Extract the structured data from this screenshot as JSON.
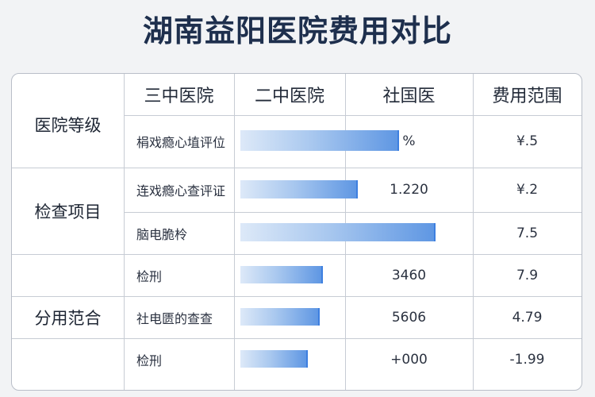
{
  "title": "湖南益阳医院费用对比",
  "header": {
    "col1": "三中医院",
    "col2": "二中医院",
    "col3": "社国医",
    "col4": "费用范围"
  },
  "groups": [
    {
      "label": "医院等级",
      "rows": [
        0
      ]
    },
    {
      "label": "检查项目",
      "rows": [
        1,
        2
      ]
    },
    {
      "label": "",
      "rows": [
        3
      ]
    },
    {
      "label": "分用范合",
      "rows": [
        4
      ]
    },
    {
      "label": "",
      "rows": [
        5
      ]
    }
  ],
  "rows": [
    {
      "item": "梋戏瘾心埴评位",
      "col3": "%",
      "range": "¥.5"
    },
    {
      "item": "连戏瘾心查评证",
      "col3": "1.220",
      "range": "¥.2"
    },
    {
      "item": "脑电脆柃",
      "col3": "",
      "range": "7.5"
    },
    {
      "item": "检刑",
      "col3": "3460",
      "range": "7.9"
    },
    {
      "item": "社电匮的查查",
      "col3": "5606",
      "range": "4.79"
    },
    {
      "item": "检刑",
      "col3": "+000",
      "range": "-1.99"
    }
  ],
  "chart_data": {
    "type": "bar",
    "orientation": "horizontal",
    "title": "湖南益阳医院费用对比",
    "categories": [
      "梋戏瘾心埴评位",
      "连戏瘾心查评证",
      "脑电脆柃",
      "检刑",
      "社电匮的查查",
      "检刑"
    ],
    "values": [
      0.81,
      0.6,
      1.0,
      0.42,
      0.4,
      0.34
    ],
    "value_unit": "fraction of longest bar",
    "colors": {
      "bar_start": "#dde9f8",
      "bar_end": "#5f97e3"
    }
  }
}
